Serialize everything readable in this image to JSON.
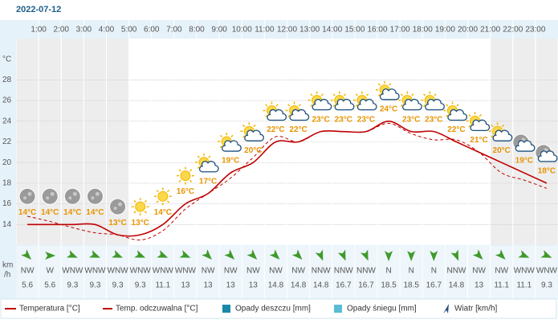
{
  "date": "2022-07-12",
  "chart_data": {
    "type": "line",
    "y_unit": "°C",
    "x": [
      0.5,
      1.5,
      2.5,
      3.5,
      4.5,
      5.5,
      6.5,
      7.5,
      8.5,
      9.5,
      10.5,
      11.5,
      12.5,
      13.5,
      14.5,
      15.5,
      16.5,
      17.5,
      18.5,
      19.5,
      20.5,
      21.5,
      22.5,
      23.5
    ],
    "xlim": [
      0,
      24
    ],
    "xticks": [
      {
        "value": 1,
        "label": "1:00"
      },
      {
        "value": 2,
        "label": "2:00"
      },
      {
        "value": 3,
        "label": "3:00"
      },
      {
        "value": 4,
        "label": "4:00"
      },
      {
        "value": 5,
        "label": "5:00"
      },
      {
        "value": 6,
        "label": "6:00"
      },
      {
        "value": 7,
        "label": "7:00"
      },
      {
        "value": 8,
        "label": "8:00"
      },
      {
        "value": 9,
        "label": "9:00"
      },
      {
        "value": 10,
        "label": "10:00"
      },
      {
        "value": 11,
        "label": "11:00"
      },
      {
        "value": 12,
        "label": "12:00"
      },
      {
        "value": 13,
        "label": "13:00"
      },
      {
        "value": 14,
        "label": "14:00"
      },
      {
        "value": 15,
        "label": "15:00"
      },
      {
        "value": 16,
        "label": "16:00"
      },
      {
        "value": 17,
        "label": "17:00"
      },
      {
        "value": 18,
        "label": "18:00"
      },
      {
        "value": 19,
        "label": "19:00"
      },
      {
        "value": 20,
        "label": "20:00"
      },
      {
        "value": 21,
        "label": "21:00"
      },
      {
        "value": 22,
        "label": "22:00"
      },
      {
        "value": 23,
        "label": "23:00"
      }
    ],
    "ylim": [
      12,
      32
    ],
    "yticks": [
      14,
      16,
      18,
      20,
      22,
      24,
      26,
      28
    ],
    "series": [
      {
        "name": "Temperatura [°C]",
        "color": "#c00000",
        "values": [
          14,
          14,
          14,
          14,
          13,
          13,
          14,
          16,
          17,
          19,
          20,
          22,
          22,
          23,
          23,
          23,
          24,
          23,
          23,
          22,
          21,
          20,
          19,
          18
        ],
        "value_labels": [
          "14°C",
          "14°C",
          "14°C",
          "14°C",
          "13°C",
          "13°C",
          "14°C",
          "16°C",
          "17°C",
          "19°C",
          "20°C",
          "22°C",
          "22°C",
          "23°C",
          "23°C",
          "23°C",
          "24°C",
          "23°C",
          "23°C",
          "22°C",
          "21°C",
          "20°C",
          "19°C",
          "18°C"
        ]
      },
      {
        "name": "Temp. odczuwalna [°C]",
        "color": "#c00000",
        "dashed": true,
        "values": [
          14.8,
          14.3,
          13.7,
          13.2,
          13,
          12.5,
          13.4,
          15.5,
          17,
          18.5,
          20.5,
          22.5,
          22,
          23,
          23,
          23,
          23.8,
          22.8,
          22.2,
          22.2,
          21,
          19,
          18.3,
          17.5
        ]
      }
    ],
    "legend_extra": [
      {
        "name": "Opady deszczu [mm]",
        "color": "#1a88a8"
      },
      {
        "name": "Opady śniegu [mm]",
        "color": "#5bbcd6"
      },
      {
        "name": "Wiatr [km/h]",
        "color": "#2a4f7a"
      }
    ]
  },
  "wind": {
    "unit": [
      "km",
      "/h"
    ],
    "directions": [
      "NW",
      "W",
      "WNW",
      "WNW",
      "WNW",
      "WNW",
      "WNW",
      "WNW",
      "NW",
      "NW",
      "NW",
      "NW",
      "NW",
      "NNW",
      "NNW",
      "NNW",
      "N",
      "N",
      "N",
      "NNW",
      "NW",
      "NW",
      "WNW",
      "WNW"
    ],
    "speeds": [
      5.6,
      5.6,
      9.3,
      9.3,
      9.3,
      9.3,
      11.1,
      13,
      13,
      13,
      13,
      14.8,
      14.8,
      14.8,
      16.7,
      16.7,
      18.5,
      18.5,
      16.7,
      14.8,
      13,
      11.1,
      11.1,
      9.3
    ]
  }
}
